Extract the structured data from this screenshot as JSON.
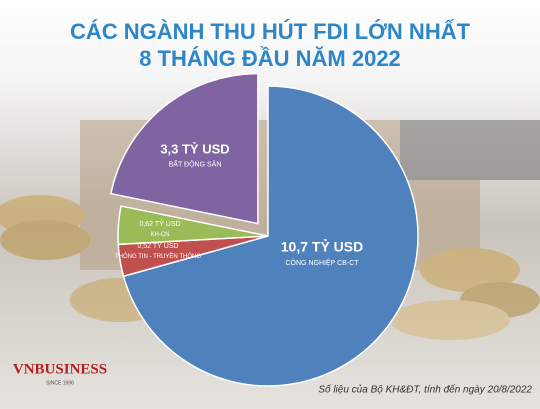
{
  "chart_data": {
    "type": "pie",
    "title": "CÁC NGÀNH THU HÚT FDI LỚN NHẤT",
    "subtitle": "8 THÁNG ĐẦU NĂM 2022",
    "categories": [
      "CÔNG NGHIỆP CB-CT",
      "THÔNG TIN - TRUYỀN THÔNG",
      "KH-CN",
      "BẤT ĐỘNG SẢN"
    ],
    "values": [
      10.7,
      0.52,
      0.62,
      3.3
    ],
    "value_labels": [
      "10,7 TỶ USD",
      "0,52 TỶ USD",
      "0,62 TỶ USD",
      "3,3 TỶ USD"
    ],
    "colors": [
      "#4f81bd",
      "#c0504d",
      "#9bbb59",
      "#8064a2"
    ],
    "source": "Số liệu của Bộ KH&ĐT, tính đến ngày 20/8/2022"
  },
  "logo": {
    "name": "VNBUSINESS",
    "tagline": "SINCE 1996"
  }
}
